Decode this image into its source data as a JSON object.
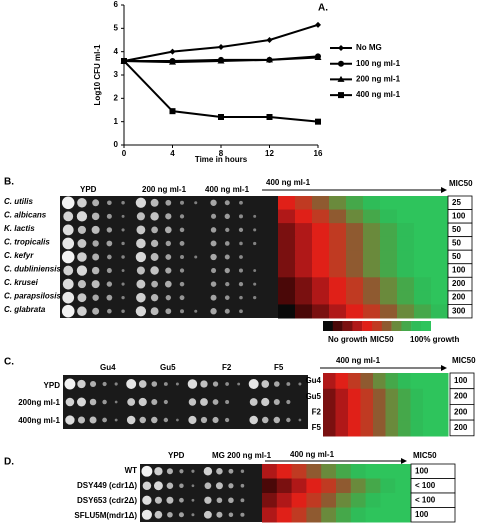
{
  "panels": {
    "a": "A.",
    "b": "B.",
    "c": "C.",
    "d": "D."
  },
  "chart_data": {
    "type": "line",
    "xlabel": "Time in hours",
    "ylabel": "Log10 CFU ml-1",
    "x": [
      0,
      4,
      8,
      12,
      16
    ],
    "xlim": [
      0,
      16
    ],
    "xticks": [
      0,
      4,
      8,
      12,
      16
    ],
    "ylim": [
      0,
      6
    ],
    "yticks": [
      0,
      1,
      2,
      3,
      4,
      5,
      6
    ],
    "legend": "right",
    "series": [
      {
        "name": "No MG",
        "color": "#000000",
        "marker": "diamond",
        "values": [
          3.6,
          4.0,
          4.2,
          4.5,
          5.15
        ]
      },
      {
        "name": "100 ng ml-1",
        "color": "#000000",
        "marker": "circle",
        "values": [
          3.6,
          3.6,
          3.65,
          3.65,
          3.8
        ]
      },
      {
        "name": "200 ng ml-1",
        "color": "#000000",
        "marker": "triangle",
        "values": [
          3.6,
          3.55,
          3.6,
          3.65,
          3.75
        ]
      },
      {
        "name": "400 ng ml-1",
        "color": "#000000",
        "marker": "square",
        "values": [
          3.6,
          1.45,
          1.2,
          1.2,
          1.0
        ]
      }
    ]
  },
  "panel_b": {
    "headers": [
      "YPD",
      "200 ng ml-1",
      "400 ng ml-1"
    ],
    "gradient_label": "400 ng ml-1",
    "mic_header": "MIC50",
    "species": [
      "C. utilis",
      "C. albicans",
      "K. lactis",
      "C. tropicalis",
      "C. kefyr",
      "C. dubliniensis",
      "C. krusei",
      "C. parapsilosis",
      "C. glabrata"
    ],
    "mic": [
      "25",
      "100",
      "50",
      "50",
      "50",
      "100",
      "200",
      "200",
      "300"
    ],
    "legend": [
      "No growth",
      "MIC50",
      "100% growth"
    ]
  },
  "panel_c": {
    "columns": [
      "Gu4",
      "Gu5",
      "F2",
      "F5"
    ],
    "rows": [
      "YPD",
      "200ng ml-1",
      "400ng ml-1"
    ],
    "gradient_label": "400 ng ml-1",
    "mic_header": "MIC50",
    "heat_rows": [
      "Gu4",
      "Gu5",
      "F2",
      "F5"
    ],
    "mic": [
      "100",
      "200",
      "200",
      "200"
    ]
  },
  "panel_d": {
    "headers": [
      "YPD",
      "MG 200 ng ml-1"
    ],
    "gradient_label": "400 ng ml-1",
    "mic_header": "MIC50",
    "strains": [
      "WT",
      "DSY449 (cdr1Δ)",
      "DSY653 (cdr2Δ)",
      "SFLU5M(mdr1Δ)"
    ],
    "mic": [
      "100",
      "< 100",
      "< 100",
      "100"
    ]
  }
}
